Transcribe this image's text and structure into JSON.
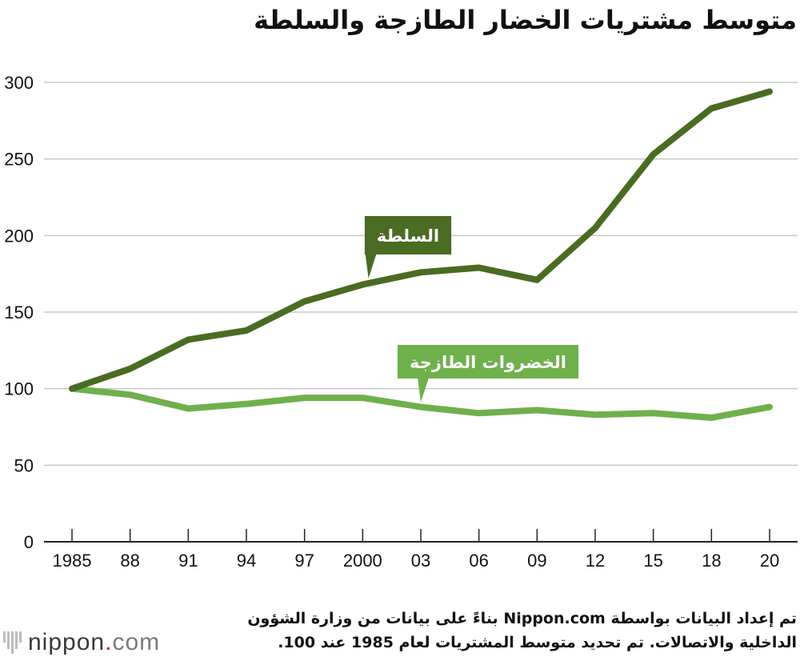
{
  "chart_data": {
    "type": "line",
    "title": "متوسط مشتريات الخضار الطازجة والسلطة",
    "xlabel": "",
    "ylabel": "",
    "ylim": [
      0,
      300
    ],
    "yticks": [
      0,
      50,
      100,
      150,
      200,
      250,
      300
    ],
    "categories": [
      "1985",
      "88",
      "91",
      "94",
      "97",
      "2000",
      "03",
      "06",
      "09",
      "12",
      "15",
      "18",
      "20"
    ],
    "series": [
      {
        "name": "السلطة",
        "color": "#4a6b22",
        "values": [
          100,
          113,
          132,
          138,
          157,
          168,
          176,
          179,
          171,
          205,
          253,
          283,
          294
        ]
      },
      {
        "name": "الخضروات الطازجة",
        "color": "#6fb04c",
        "values": [
          100,
          96,
          87,
          90,
          94,
          94,
          88,
          84,
          86,
          83,
          84,
          81,
          88
        ]
      }
    ],
    "grid": true
  },
  "footer": {
    "note": "تم إعداد البيانات بواسطة Nippon.com بناءً على بيانات من وزارة الشؤون الداخلية والاتصالات. تم تحديد متوسط المشتريات لعام 1985 عند 100.",
    "logo_word": "nippon",
    "logo_dot": ".",
    "logo_suffix": "com"
  }
}
